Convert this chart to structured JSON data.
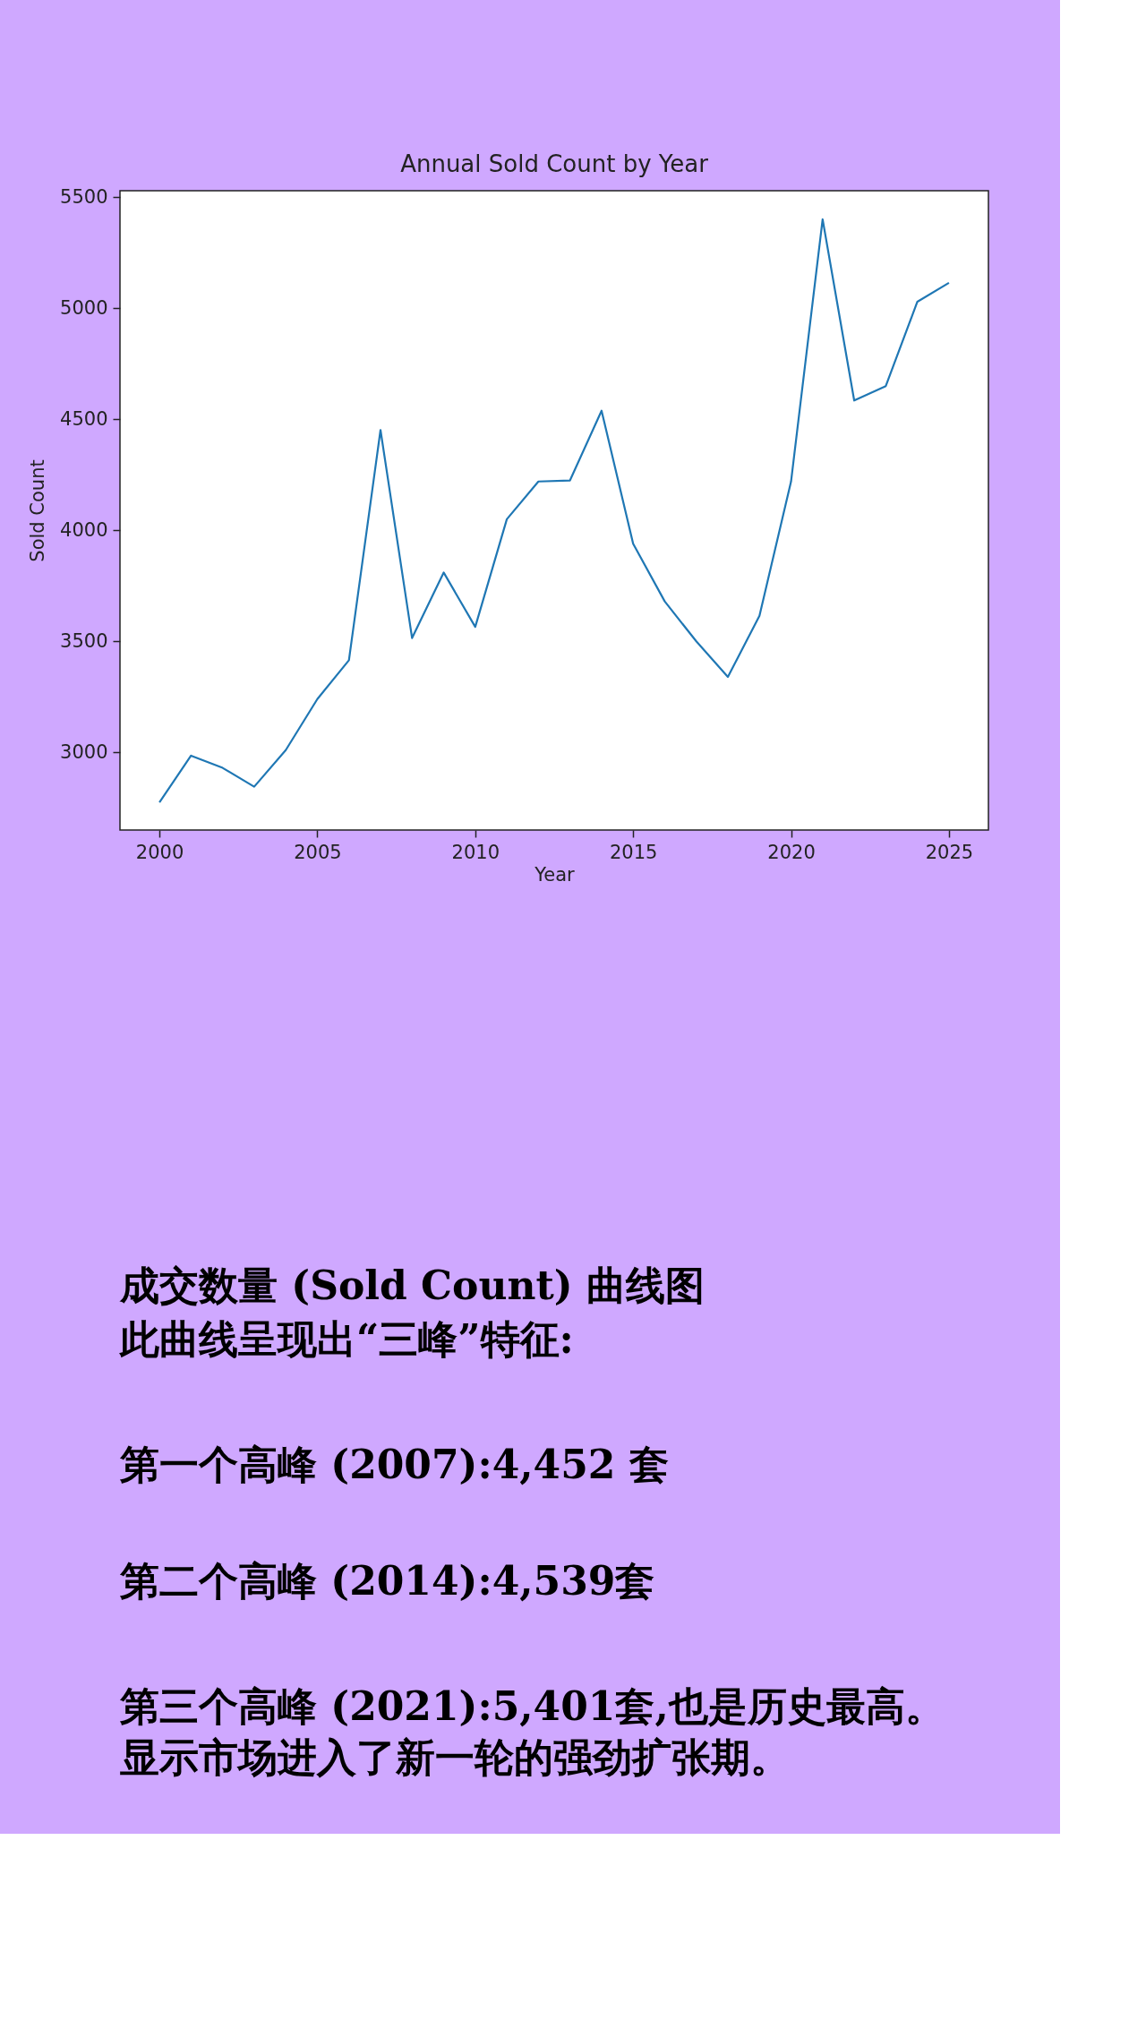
{
  "chart_data": {
    "type": "line",
    "title": "Annual Sold Count by Year",
    "xlabel": "Year",
    "ylabel": "Sold Count",
    "x": [
      2000,
      2001,
      2002,
      2003,
      2004,
      2005,
      2006,
      2007,
      2008,
      2009,
      2010,
      2011,
      2012,
      2013,
      2014,
      2015,
      2016,
      2017,
      2018,
      2019,
      2020,
      2021,
      2022,
      2023,
      2024,
      2025
    ],
    "series": [
      {
        "color": "#1f77b4",
        "values": [
          2775,
          2985,
          2930,
          2845,
          3010,
          3240,
          3415,
          4452,
          3515,
          3810,
          3565,
          4050,
          4220,
          4225,
          4539,
          3940,
          3680,
          3500,
          3340,
          3615,
          4220,
          5401,
          4585,
          4650,
          5030,
          5115
        ]
      }
    ],
    "xlim": [
      1998.75,
      2026.25
    ],
    "xticks": [
      2000,
      2005,
      2010,
      2015,
      2020,
      2025
    ],
    "ylim": [
      2650,
      5530
    ],
    "yticks": [
      3000,
      3500,
      4000,
      4500,
      5000,
      5500
    ],
    "grid": false,
    "marker": "none",
    "line_style": "solid",
    "annotations": [
      "成交数量 (Sold Count) 曲线图",
      "此曲线呈现出“三峰”特征:",
      "第一个高峰 (2007):4,452  套",
      "第二个高峰 (2014):4,539套",
      "第三个高峰 (2021):5,401套,也是历史最高。",
      "显示市场进入了新一轮的强劲扩张期。"
    ]
  }
}
